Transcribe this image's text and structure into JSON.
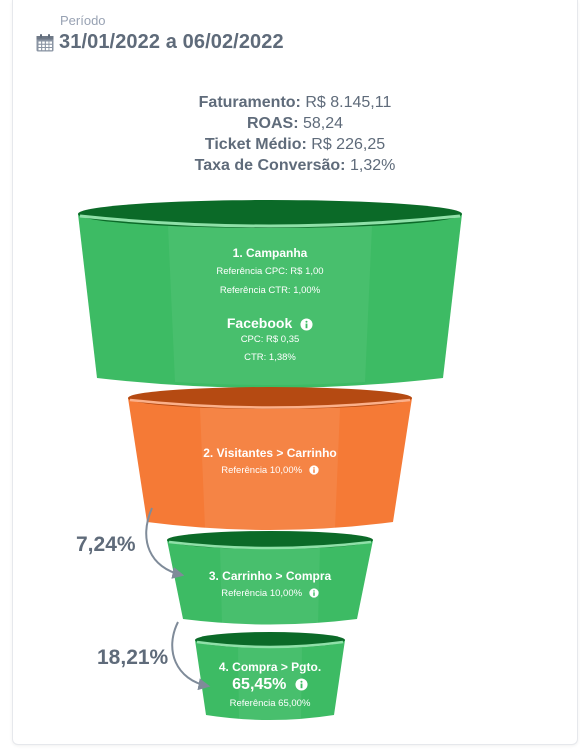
{
  "period": {
    "label": "Período",
    "value": "31/01/2022 a 06/02/2022"
  },
  "metrics": [
    {
      "label": "Faturamento:",
      "value": "R$ 8.145,11"
    },
    {
      "label": "ROAS:",
      "value": "58,24"
    },
    {
      "label": "Ticket Médio:",
      "value": "R$ 226,25"
    },
    {
      "label": "Taxa de Conversão:",
      "value": "1,32%"
    }
  ],
  "funnel": {
    "stage1": {
      "title": "1. Campanha",
      "ref_cpc": "Referência CPC: R$ 1,00",
      "ref_ctr": "Referência CTR: 1,00%",
      "source": "Facebook",
      "cpc": "CPC: R$ 0,35",
      "ctr": "CTR: 1,38%",
      "color": "#3dbb64"
    },
    "stage2": {
      "title": "2. Visitantes > Carrinho",
      "ref": "Referência 10,00%",
      "color": "#f57a36"
    },
    "stage3": {
      "title": "3. Carrinho > Compra",
      "ref": "Referência 10,00%",
      "rate": "7,24%",
      "color": "#3dbb64"
    },
    "stage4": {
      "title": "4. Compra > Pgto.",
      "value": "65,45%",
      "ref": "Referência 65,00%",
      "rate": "18,21%",
      "color": "#3dbb64"
    }
  },
  "icons": [
    "calendar-icon",
    "info-icon",
    "curved-arrow-icon"
  ]
}
